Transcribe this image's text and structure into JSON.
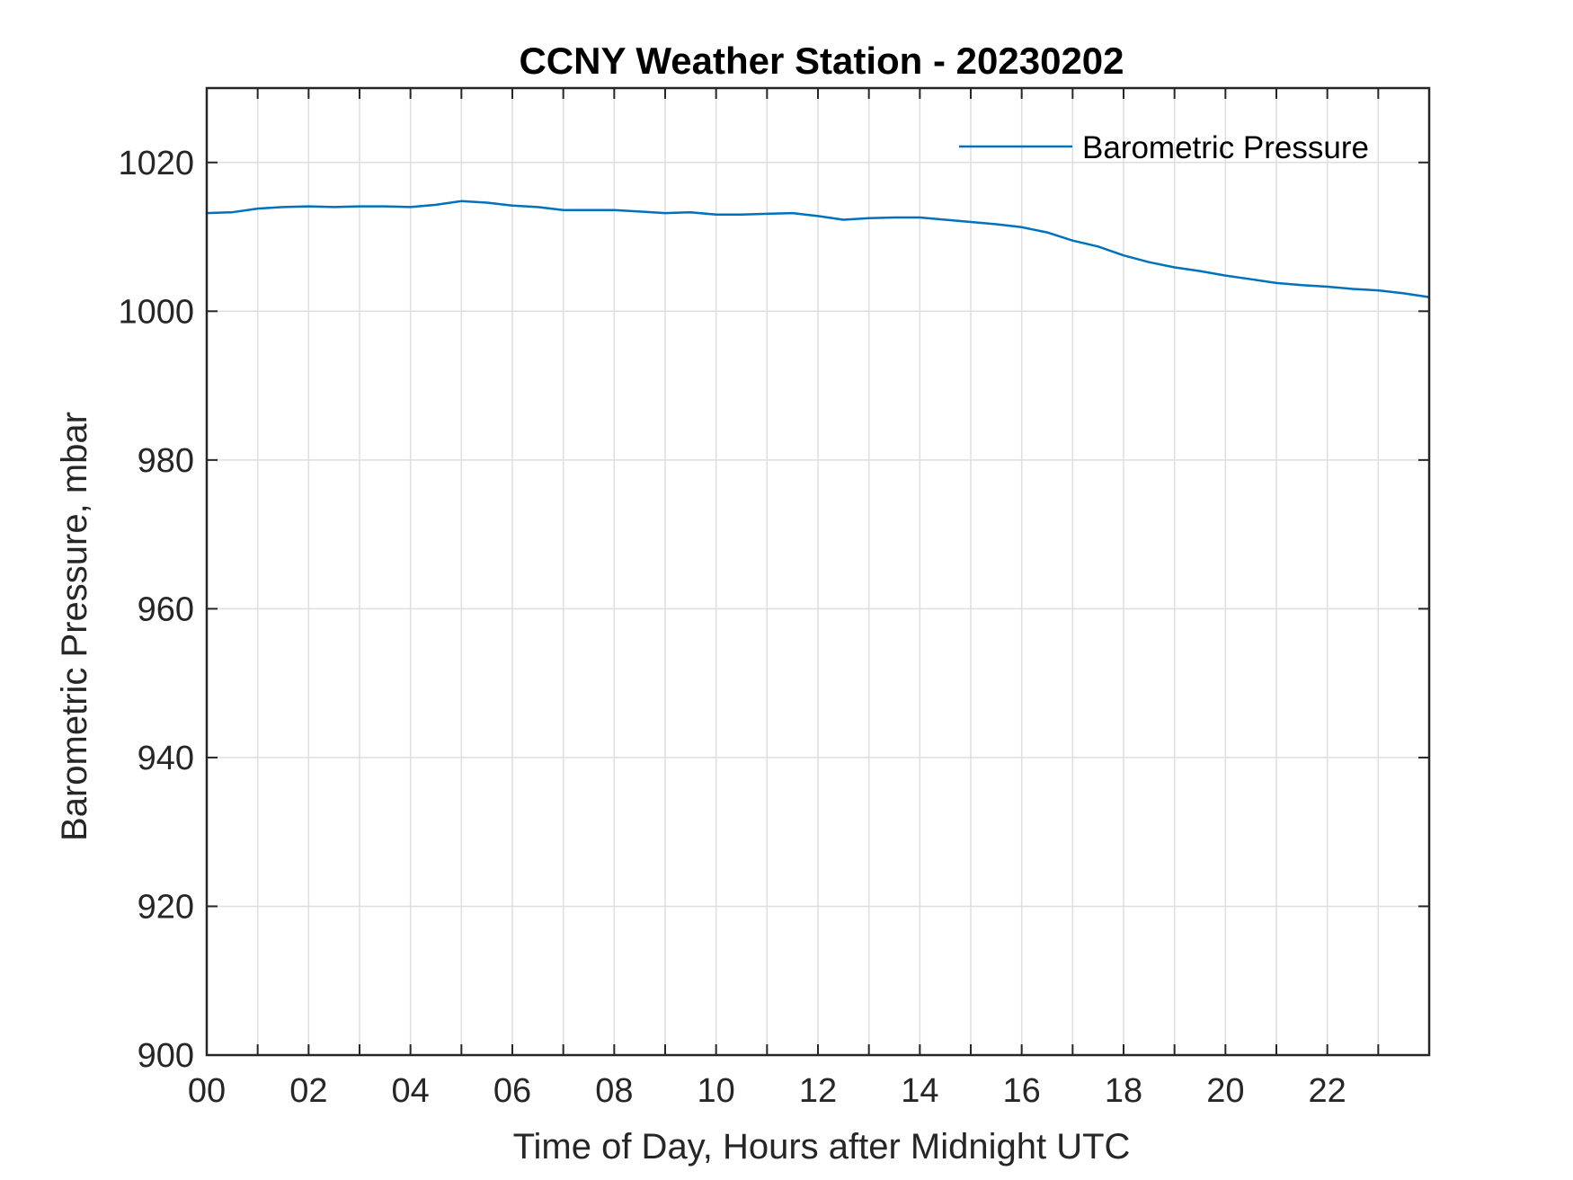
{
  "chart_data": {
    "type": "line",
    "title": "CCNY Weather Station - 20230202",
    "xlabel": "Time of Day, Hours after Midnight UTC",
    "ylabel": "Barometric Pressure, mbar",
    "xlim": [
      0,
      24
    ],
    "ylim": [
      900,
      1030
    ],
    "x_ticks": [
      0,
      2,
      4,
      6,
      8,
      10,
      12,
      14,
      16,
      18,
      20,
      22
    ],
    "x_tick_labels": [
      "00",
      "02",
      "04",
      "06",
      "08",
      "10",
      "12",
      "14",
      "16",
      "18",
      "20",
      "22"
    ],
    "x_minor_ticks": [
      1,
      3,
      5,
      7,
      9,
      11,
      13,
      15,
      17,
      19,
      21,
      23
    ],
    "y_ticks": [
      900,
      920,
      940,
      960,
      980,
      1000,
      1020
    ],
    "y_tick_labels": [
      "900",
      "920",
      "940",
      "960",
      "980",
      "1000",
      "1020"
    ],
    "grid": true,
    "legend_position": "top-right",
    "colors": {
      "series": "#0072BD",
      "grid": "#dedede",
      "axes": "#262626"
    },
    "series": [
      {
        "name": "Barometric Pressure",
        "x": [
          0,
          0.5,
          1,
          1.5,
          2,
          2.5,
          3,
          3.5,
          4,
          4.5,
          5,
          5.5,
          6,
          6.5,
          7,
          7.5,
          8,
          8.5,
          9,
          9.5,
          10,
          10.5,
          11,
          11.5,
          12,
          12.5,
          13,
          13.5,
          14,
          14.5,
          15,
          15.5,
          16,
          16.5,
          17,
          17.5,
          18,
          18.5,
          19,
          19.5,
          20,
          20.5,
          21,
          21.5,
          22,
          22.5,
          23,
          23.5,
          24
        ],
        "values": [
          1013.2,
          1013.3,
          1013.8,
          1014.0,
          1014.1,
          1014.0,
          1014.1,
          1014.1,
          1014.0,
          1014.3,
          1014.8,
          1014.6,
          1014.2,
          1014.0,
          1013.6,
          1013.6,
          1013.6,
          1013.4,
          1013.2,
          1013.3,
          1013.0,
          1013.0,
          1013.1,
          1013.2,
          1012.8,
          1012.3,
          1012.5,
          1012.6,
          1012.6,
          1012.3,
          1012.0,
          1011.7,
          1011.3,
          1010.6,
          1009.5,
          1008.7,
          1007.5,
          1006.6,
          1005.9,
          1005.4,
          1004.8,
          1004.3,
          1003.8,
          1003.5,
          1003.3,
          1003.0,
          1002.8,
          1002.4,
          1001.9
        ]
      }
    ]
  }
}
